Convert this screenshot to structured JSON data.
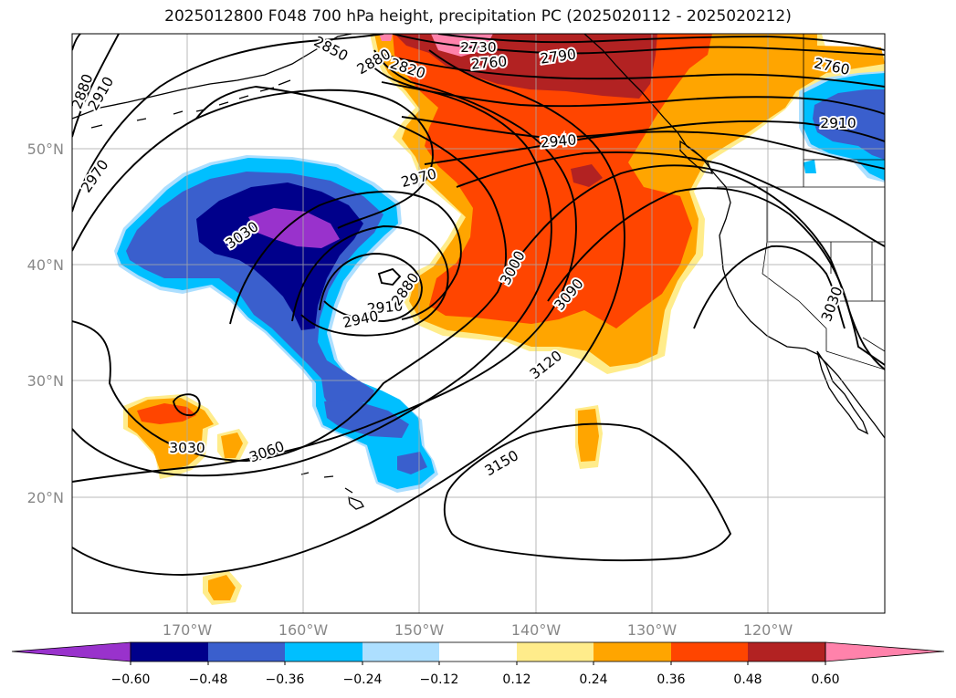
{
  "title": "2025012800 F048 700 hPa height, precipitation PC (2025020112 - 2025020212)",
  "latitude_labels": [
    "50°N",
    "40°N",
    "30°N",
    "20°N"
  ],
  "longitude_labels": [
    "170°W",
    "160°W",
    "150°W",
    "140°W",
    "130°W",
    "120°W"
  ],
  "contour_labels": [
    "2880",
    "2910",
    "2970",
    "3030",
    "2730",
    "2760",
    "2790",
    "2820",
    "2850",
    "2880",
    "2760",
    "2910",
    "2940",
    "2970",
    "3000",
    "3090",
    "3120",
    "3150",
    "3060",
    "3030",
    "2910",
    "2940",
    "2880",
    "3030"
  ],
  "colorbar": {
    "tick_labels": [
      "−0.60",
      "−0.48",
      "−0.36",
      "−0.24",
      "−0.12",
      "0.12",
      "0.24",
      "0.36",
      "0.48",
      "0.60"
    ],
    "colors": [
      "#9932CC",
      "#00008B",
      "#3A5FCD",
      "#00BFFF",
      "#ADDFFF",
      "#FFFFFF",
      "#FFEC8B",
      "#FFA500",
      "#FF4500",
      "#B22222",
      "#FF82AB"
    ]
  },
  "colors": {
    "neg_060": "#9932CC",
    "neg_048": "#00008B",
    "neg_036": "#3A5FCD",
    "neg_024": "#00BFFF",
    "neg_012": "#ADDFFF",
    "pos_012": "#FFEC8B",
    "pos_024": "#FFA500",
    "pos_036": "#FF4500",
    "pos_048": "#B22222",
    "pos_060": "#FF82AB"
  }
}
